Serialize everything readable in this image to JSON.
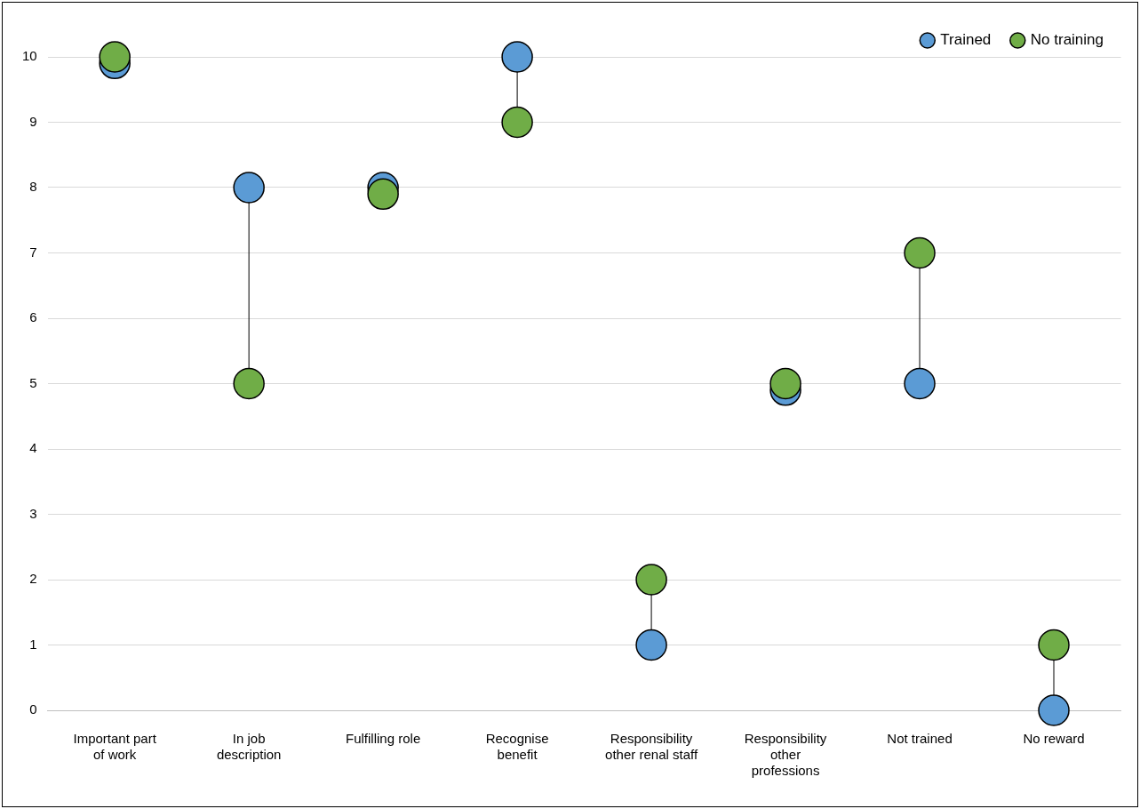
{
  "chart_data": {
    "type": "scatter",
    "categories": [
      "Important part of work",
      "In job description",
      "Fulfilling role",
      "Recognise benefit",
      "Responsibility other renal staff",
      "Responsibility other professions",
      "Not trained",
      "No reward"
    ],
    "series": [
      {
        "name": "Trained",
        "color": "#5b9bd5",
        "values": [
          9.9,
          8,
          8,
          10,
          1,
          4.9,
          5,
          0
        ]
      },
      {
        "name": "No training",
        "color": "#70ad47",
        "values": [
          10,
          5,
          7.9,
          9,
          2,
          5,
          7,
          1
        ]
      }
    ],
    "ylim": [
      0,
      10
    ],
    "yticks": [
      0,
      1,
      2,
      3,
      4,
      5,
      6,
      7,
      8,
      9,
      10
    ],
    "grid": "y",
    "legend": "top right",
    "marker": "circle"
  }
}
